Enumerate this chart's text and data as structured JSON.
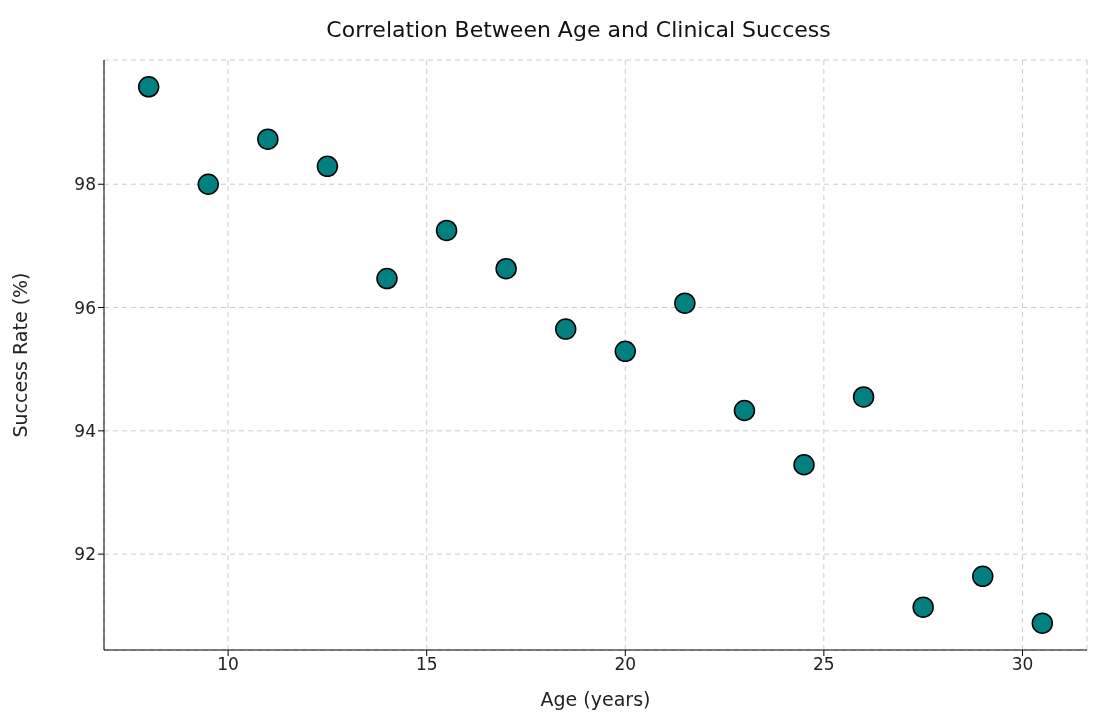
{
  "chart_data": {
    "type": "scatter",
    "title": "Correlation Between Age and Clinical Success",
    "xlabel": "Age (years)",
    "ylabel": "Success Rate (%)",
    "x": [
      8,
      9.5,
      11,
      12.5,
      14,
      15.5,
      17,
      18.5,
      20,
      21.5,
      23,
      24.5,
      26,
      27.5,
      29,
      30.5
    ],
    "values": [
      99.58,
      98.0,
      98.73,
      98.29,
      96.47,
      97.25,
      96.63,
      95.65,
      95.29,
      96.07,
      94.33,
      93.45,
      94.55,
      91.14,
      91.64,
      90.88
    ],
    "color": "#008080",
    "xlim": [
      6.875,
      31.625
    ],
    "ylim": [
      90.445,
      100.015
    ],
    "xticks": [
      10,
      15,
      20,
      25,
      30
    ],
    "yticks": [
      92,
      94,
      96,
      98
    ],
    "grid": true,
    "marker": "circle"
  }
}
